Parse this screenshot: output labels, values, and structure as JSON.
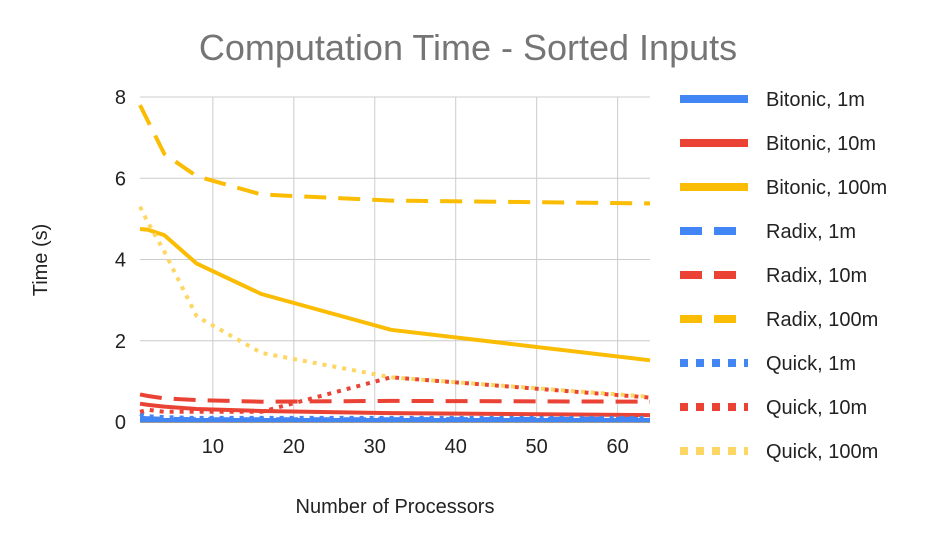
{
  "chart_data": {
    "type": "line",
    "title": "Computation Time - Sorted Inputs",
    "xlabel": "Number of Processors",
    "ylabel": "Time (s)",
    "xlim": [
      1,
      64
    ],
    "ylim": [
      0,
      8
    ],
    "x_ticks": [
      10,
      20,
      30,
      40,
      50,
      60
    ],
    "y_ticks": [
      0,
      2,
      4,
      6,
      8
    ],
    "grid": true,
    "legend_position": "right",
    "series": [
      {
        "name": "Bitonic, 1m",
        "color": "#4285F4",
        "dash": "solid",
        "points": [
          [
            1,
            0.05
          ],
          [
            2,
            0.05
          ],
          [
            4,
            0.05
          ],
          [
            8,
            0.05
          ],
          [
            16,
            0.05
          ],
          [
            32,
            0.05
          ],
          [
            64,
            0.05
          ]
        ]
      },
      {
        "name": "Bitonic, 10m",
        "color": "#EA4335",
        "dash": "solid",
        "points": [
          [
            1,
            0.45
          ],
          [
            2,
            0.42
          ],
          [
            4,
            0.38
          ],
          [
            8,
            0.32
          ],
          [
            16,
            0.27
          ],
          [
            32,
            0.22
          ],
          [
            64,
            0.17
          ]
        ]
      },
      {
        "name": "Bitonic, 100m",
        "color": "#FBBC04",
        "dash": "solid",
        "points": [
          [
            1,
            4.75
          ],
          [
            2,
            4.73
          ],
          [
            4,
            4.6
          ],
          [
            8,
            3.9
          ],
          [
            16,
            3.15
          ],
          [
            32,
            2.27
          ],
          [
            64,
            1.52
          ]
        ]
      },
      {
        "name": "Radix, 1m",
        "color": "#4285F4",
        "dash": "dashed",
        "points": [
          [
            1,
            0.1
          ],
          [
            2,
            0.09
          ],
          [
            4,
            0.08
          ],
          [
            8,
            0.07
          ],
          [
            16,
            0.07
          ],
          [
            32,
            0.07
          ],
          [
            64,
            0.08
          ]
        ]
      },
      {
        "name": "Radix, 10m",
        "color": "#EA4335",
        "dash": "dashed",
        "points": [
          [
            1,
            0.68
          ],
          [
            2,
            0.64
          ],
          [
            4,
            0.58
          ],
          [
            8,
            0.54
          ],
          [
            16,
            0.5
          ],
          [
            32,
            0.52
          ],
          [
            64,
            0.5
          ]
        ]
      },
      {
        "name": "Radix, 100m",
        "color": "#FBBC04",
        "dash": "dashed",
        "points": [
          [
            1,
            7.8
          ],
          [
            2,
            7.4
          ],
          [
            4,
            6.6
          ],
          [
            8,
            6.05
          ],
          [
            16,
            5.6
          ],
          [
            32,
            5.45
          ],
          [
            64,
            5.38
          ]
        ]
      },
      {
        "name": "Quick, 1m",
        "color": "#4285F4",
        "dash": "dotted",
        "points": [
          [
            1,
            0.2
          ],
          [
            2,
            0.14
          ],
          [
            4,
            0.12
          ],
          [
            8,
            0.1
          ],
          [
            16,
            0.1
          ],
          [
            32,
            0.1
          ],
          [
            64,
            0.1
          ]
        ]
      },
      {
        "name": "Quick, 10m",
        "color": "#EA4335",
        "dash": "dotted",
        "points": [
          [
            1,
            0.25
          ],
          [
            2,
            0.3
          ],
          [
            4,
            0.25
          ],
          [
            8,
            0.25
          ],
          [
            16,
            0.25
          ],
          [
            32,
            1.1
          ],
          [
            64,
            0.6
          ]
        ]
      },
      {
        "name": "Quick, 100m",
        "color": "#FDD663",
        "dash": "dotted",
        "points": [
          [
            1,
            5.3
          ],
          [
            2,
            4.9
          ],
          [
            4,
            4.2
          ],
          [
            8,
            2.6
          ],
          [
            16,
            1.7
          ],
          [
            32,
            1.1
          ],
          [
            64,
            0.62
          ]
        ]
      }
    ]
  }
}
